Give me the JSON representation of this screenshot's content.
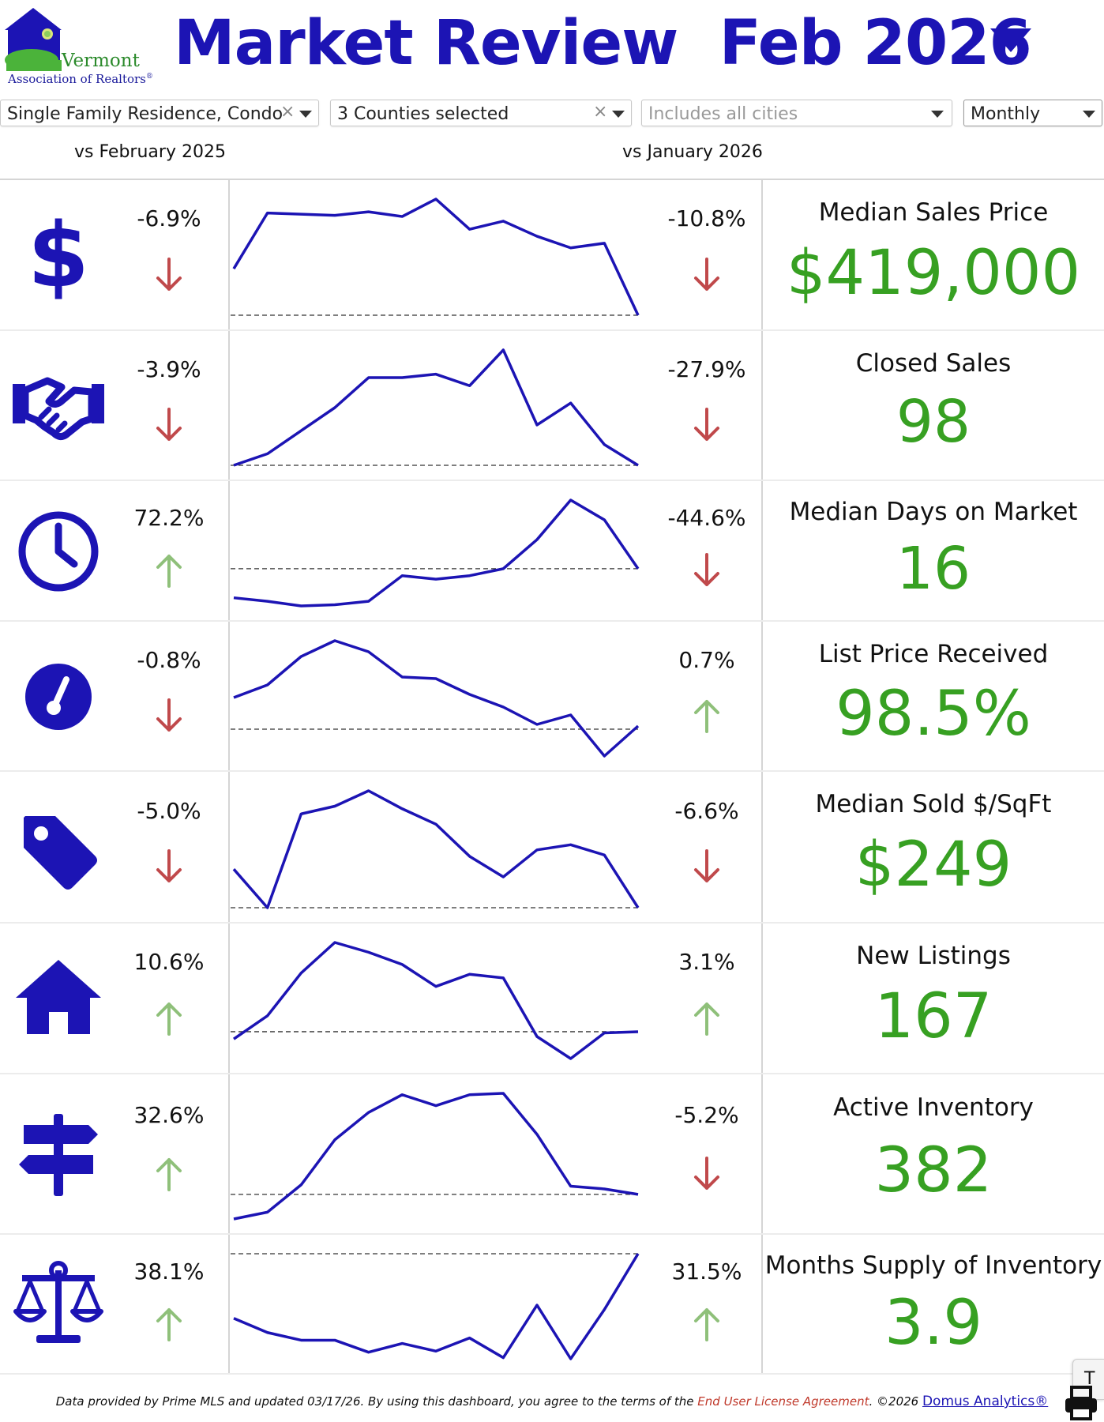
{
  "header": {
    "logo_line1": "Vermont",
    "logo_line2": "Association of Realtors",
    "logo_reg": "®",
    "title_main": "Market Review",
    "title_period": "Feb 2026"
  },
  "filters": [
    {
      "text": "Single Family Residence, Condo",
      "clearable": true
    },
    {
      "text": "3 Counties selected",
      "clearable": true
    },
    {
      "text": "Includes all cities",
      "clearable": false,
      "placeholder": true
    },
    {
      "text": "Monthly",
      "clearable": false
    }
  ],
  "columns": {
    "yoy_header": "vs February 2025",
    "mom_header": "vs January 2026"
  },
  "colors": {
    "accent": "#1c14b4",
    "value_green": "#37a022",
    "arrow_up": "#8fc07a",
    "arrow_down": "#c0494b"
  },
  "metrics": [
    {
      "icon": "dollar-icon",
      "label": "Median Sales Price",
      "value": "$419,000",
      "yoy": "-6.9%",
      "yoy_dir": "down",
      "mom": "-10.8%",
      "mom_dir": "down"
    },
    {
      "icon": "handshake-icon",
      "label": "Closed Sales",
      "value": "98",
      "yoy": "-3.9%",
      "yoy_dir": "down",
      "mom": "-27.9%",
      "mom_dir": "down"
    },
    {
      "icon": "clock-icon",
      "label": "Median Days on Market",
      "value": "16",
      "yoy": "72.2%",
      "yoy_dir": "up",
      "mom": "-44.6%",
      "mom_dir": "down"
    },
    {
      "icon": "gauge-icon",
      "label": "List Price Received",
      "value": "98.5%",
      "yoy": "-0.8%",
      "yoy_dir": "down",
      "mom": "0.7%",
      "mom_dir": "up"
    },
    {
      "icon": "price-tag-icon",
      "label": "Median Sold $/SqFt",
      "value": "$249",
      "yoy": "-5.0%",
      "yoy_dir": "down",
      "mom": "-6.6%",
      "mom_dir": "down"
    },
    {
      "icon": "house-icon",
      "label": "New Listings",
      "value": "167",
      "yoy": "10.6%",
      "yoy_dir": "up",
      "mom": "3.1%",
      "mom_dir": "up"
    },
    {
      "icon": "signpost-icon",
      "label": "Active Inventory",
      "value": "382",
      "yoy": "32.6%",
      "yoy_dir": "up",
      "mom": "-5.2%",
      "mom_dir": "down"
    },
    {
      "icon": "balance-scale-icon",
      "label": "Months Supply of Inventory",
      "value": "3.9",
      "yoy": "38.1%",
      "yoy_dir": "up",
      "mom": "31.5%",
      "mom_dir": "up"
    }
  ],
  "sparklines": [
    {
      "values": [
        0.4,
        0.88,
        0.87,
        0.86,
        0.89,
        0.85,
        1.0,
        0.74,
        0.81,
        0.68,
        0.58,
        0.62,
        0.0
      ],
      "baseline": 0.0
    },
    {
      "values": [
        0.0,
        0.1,
        0.3,
        0.5,
        0.76,
        0.76,
        0.79,
        0.69,
        1.0,
        0.35,
        0.54,
        0.18,
        0.0
      ],
      "baseline": 0.0
    },
    {
      "values": [
        0.07,
        0.04,
        0.0,
        0.01,
        0.04,
        0.26,
        0.23,
        0.26,
        0.32,
        0.57,
        0.91,
        0.74,
        0.32
      ],
      "baseline": 0.32
    },
    {
      "values": [
        0.37,
        0.45,
        0.63,
        0.73,
        0.66,
        0.5,
        0.49,
        0.39,
        0.31,
        0.2,
        0.26,
        0.0,
        0.19
      ],
      "baseline": 0.17
    },
    {
      "values": [
        0.3,
        0.0,
        0.73,
        0.79,
        0.91,
        0.77,
        0.65,
        0.4,
        0.24,
        0.45,
        0.49,
        0.41,
        0.0
      ],
      "baseline": 0.0
    },
    {
      "values": [
        0.0,
        0.19,
        0.54,
        0.79,
        0.71,
        0.61,
        0.43,
        0.53,
        0.5,
        0.02,
        -0.16,
        0.05,
        0.06
      ],
      "baseline": 0.06
    },
    {
      "values": [
        0.0,
        0.05,
        0.25,
        0.58,
        0.78,
        0.91,
        0.83,
        0.91,
        0.92,
        0.62,
        0.24,
        0.22,
        0.18
      ],
      "baseline": 0.18
    },
    {
      "values": [
        0.41,
        0.28,
        0.21,
        0.21,
        0.1,
        0.18,
        0.11,
        0.23,
        0.05,
        0.53,
        0.04,
        0.49,
        1.0
      ],
      "baseline": 1.0
    }
  ],
  "footer": {
    "text_1": "Data provided by Prime MLS and updated 03/17/26.  By using this dashboard, you agree to the terms of the ",
    "link_eula": "End User License Agreement",
    "text_2": ".  ©2026 ",
    "link_domus": "Domus Analytics®"
  },
  "corner_tab": "T"
}
